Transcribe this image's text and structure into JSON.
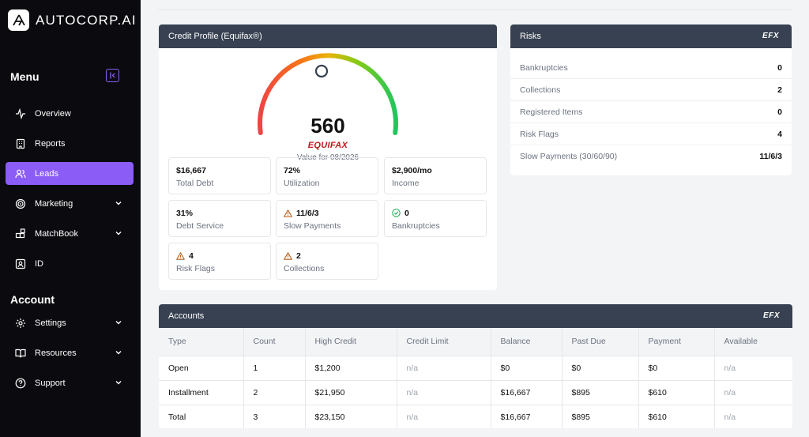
{
  "app": {
    "name": "AUTOCORP.AI"
  },
  "sidebar": {
    "menu_title": "Menu",
    "menu_items": [
      {
        "label": "Overview",
        "icon": "activity-icon"
      },
      {
        "label": "Reports",
        "icon": "building-icon"
      },
      {
        "label": "Leads",
        "icon": "users-icon",
        "active": true
      },
      {
        "label": "Marketing",
        "icon": "target-icon",
        "expandable": true
      },
      {
        "label": "MatchBook",
        "icon": "blocks-icon",
        "expandable": true
      },
      {
        "label": "ID",
        "icon": "id-card-icon"
      }
    ],
    "account_title": "Account",
    "account_items": [
      {
        "label": "Settings",
        "icon": "gear-icon",
        "expandable": true
      },
      {
        "label": "Resources",
        "icon": "book-icon",
        "expandable": true
      },
      {
        "label": "Support",
        "icon": "help-icon",
        "expandable": true
      }
    ],
    "accent": "#8b5cf6"
  },
  "credit_profile": {
    "title": "Credit Profile (Equifax®)",
    "score": "560",
    "brand": "EQUIFAX",
    "value_for": "Value for 08/2026",
    "stats": [
      {
        "value": "$16,667",
        "label": "Total Debt"
      },
      {
        "value": "72%",
        "label": "Utilization"
      },
      {
        "value": "$2,900/mo",
        "label": "Income"
      },
      {
        "value": "31%",
        "label": "Debt Service"
      },
      {
        "value": "11/6/3",
        "label": "Slow Payments",
        "icon": "warning-icon"
      },
      {
        "value": "0",
        "label": "Bankruptcies",
        "icon": "check-circle-icon"
      },
      {
        "value": "4",
        "label": "Risk Flags",
        "icon": "warning-icon"
      },
      {
        "value": "2",
        "label": "Collections",
        "icon": "warning-icon"
      }
    ]
  },
  "risks": {
    "title": "Risks",
    "badge": "EFX",
    "rows": [
      {
        "label": "Bankruptcies",
        "value": "0"
      },
      {
        "label": "Collections",
        "value": "2"
      },
      {
        "label": "Registered Items",
        "value": "0"
      },
      {
        "label": "Risk Flags",
        "value": "4"
      },
      {
        "label": "Slow Payments (30/60/90)",
        "value": "11/6/3"
      }
    ]
  },
  "accounts": {
    "title": "Accounts",
    "badge": "EFX",
    "columns": [
      "Type",
      "Count",
      "High Credit",
      "Credit Limit",
      "Balance",
      "Past Due",
      "Payment",
      "Available"
    ],
    "rows": [
      [
        "Open",
        "1",
        "$1,200",
        "n/a",
        "$0",
        "$0",
        "$0",
        "n/a"
      ],
      [
        "Installment",
        "2",
        "$21,950",
        "n/a",
        "$16,667",
        "$895",
        "$610",
        "n/a"
      ],
      [
        "Total",
        "3",
        "$23,150",
        "n/a",
        "$16,667",
        "$895",
        "$610",
        "n/a"
      ]
    ]
  }
}
